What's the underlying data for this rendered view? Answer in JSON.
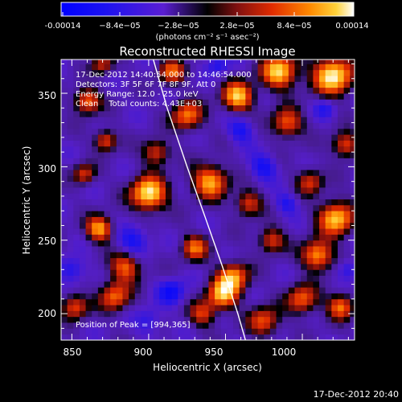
{
  "chart_data": {
    "type": "heatmap",
    "title": "Reconstructed RHESSI Image",
    "xlabel": "Heliocentric X (arcsec)",
    "ylabel": "Heliocentric Y (arcsec)",
    "xlim": [
      843,
      1034
    ],
    "ylim": [
      182,
      373
    ],
    "x_ticks": [
      {
        "value": 850,
        "label": "850"
      },
      {
        "value": 900,
        "label": "900"
      },
      {
        "value": 950,
        "label": "950"
      },
      {
        "value": 1000,
        "label": "1000"
      }
    ],
    "y_ticks": [
      {
        "value": 200,
        "label": "200"
      },
      {
        "value": 250,
        "label": "250"
      },
      {
        "value": 300,
        "label": "300"
      },
      {
        "value": 350,
        "label": "350"
      }
    ],
    "colorbar": {
      "range": [
        -0.00014,
        0.00014
      ],
      "ticks": [
        "-0.00014",
        "−8.4e−05",
        "−2.8e−05",
        "2.8e−05",
        "8.4e−05",
        "0.00014"
      ],
      "units": "(photons cm⁻² s⁻¹ asec⁻²)"
    },
    "annotations": [
      "17-Dec-2012 14:40:54.000 to 14:46:54.000",
      "Detectors: 3F 5F 6F 7F 8F 9F, Att 0",
      "Energy Range: 12.0 - 25.0 keV",
      "Clean    Total counts: 4.43E+03"
    ],
    "peak_label": "Position of Peak = [994,365]",
    "peak": [
      994,
      365
    ],
    "limb_curve": [
      [
        903,
        373
      ],
      [
        912,
        340
      ],
      [
        925,
        300
      ],
      [
        937,
        265
      ],
      [
        948,
        232
      ],
      [
        958,
        200
      ],
      [
        963,
        182
      ]
    ],
    "hotspots": [
      [
        [
          900,
          282,
          1.0,
          8
        ],
        [
          1020,
          362,
          1.0,
          9
        ],
        [
          985,
          365,
          0.9,
          8
        ],
        [
          958,
          348,
          0.85,
          7
        ],
        [
          1022,
          265,
          0.85,
          8
        ],
        [
          1010,
          240,
          0.75,
          7
        ],
        [
          940,
          290,
          0.75,
          8
        ],
        [
          955,
          225,
          0.7,
          7
        ],
        [
          868,
          258,
          0.75,
          6
        ],
        [
          948,
          213,
          0.75,
          7
        ],
        [
          885,
          232,
          0.55,
          7
        ],
        [
          878,
          212,
          0.55,
          7
        ],
        [
          860,
          345,
          0.6,
          6
        ],
        [
          872,
          318,
          0.5,
          5
        ],
        [
          925,
          335,
          0.6,
          7
        ],
        [
          990,
          330,
          0.55,
          7
        ],
        [
          1000,
          210,
          0.55,
          7
        ],
        [
          1025,
          205,
          0.6,
          6
        ],
        [
          975,
          195,
          0.5,
          7
        ],
        [
          915,
          365,
          0.5,
          6
        ],
        [
          852,
          205,
          0.5,
          6
        ],
        [
          930,
          245,
          0.55,
          6
        ],
        [
          1028,
          315,
          0.5,
          6
        ],
        [
          965,
          275,
          0.45,
          6
        ],
        [
          905,
          310,
          0.45,
          6
        ],
        [
          858,
          295,
          0.4,
          5
        ],
        [
          980,
          250,
          0.45,
          6
        ],
        [
          935,
          200,
          0.4,
          6
        ],
        [
          1005,
          290,
          0.4,
          6
        ],
        [
          870,
          370,
          0.35,
          5
        ]
      ],
      [
        [
          890,
          250,
          0.5,
          7
        ],
        [
          915,
          215,
          0.55,
          6
        ],
        [
          975,
          300,
          0.5,
          6
        ],
        [
          850,
          230,
          0.45,
          6
        ],
        [
          960,
          325,
          0.45,
          6
        ],
        [
          1015,
          340,
          0.35,
          5
        ],
        [
          945,
          370,
          0.4,
          5
        ],
        [
          900,
          195,
          0.35,
          6
        ],
        [
          990,
          275,
          0.4,
          5
        ],
        [
          1030,
          230,
          0.4,
          5
        ]
      ]
    ]
  },
  "footer": {
    "timestamp": "17-Dec-2012 20:40"
  }
}
